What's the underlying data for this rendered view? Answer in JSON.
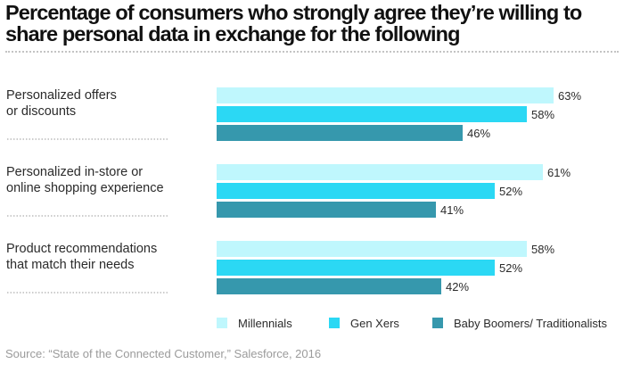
{
  "chart_data": {
    "type": "bar",
    "orientation": "horizontal",
    "title": "Percentage of consumers who strongly agree they’re willing to share personal data in exchange for the following",
    "categories": [
      [
        "Personalized offers",
        "or discounts"
      ],
      [
        "Personalized in-store or",
        "online shopping experience"
      ],
      [
        "Product recommendations",
        "that match their needs"
      ]
    ],
    "series": [
      {
        "name": "Millennials",
        "values": [
          63,
          61,
          58
        ],
        "color": "#bff7fd"
      },
      {
        "name": "Gen Xers",
        "values": [
          58,
          52,
          52
        ],
        "color": "#2bd8f4"
      },
      {
        "name": "Baby Boomers/ Traditionalists",
        "values": [
          46,
          41,
          42
        ],
        "color": "#3698ad"
      }
    ],
    "value_suffix": "%",
    "legend_position": "bottom",
    "grid": false
  },
  "source": "Source: “State of the Connected Customer,” Salesforce, 2016"
}
